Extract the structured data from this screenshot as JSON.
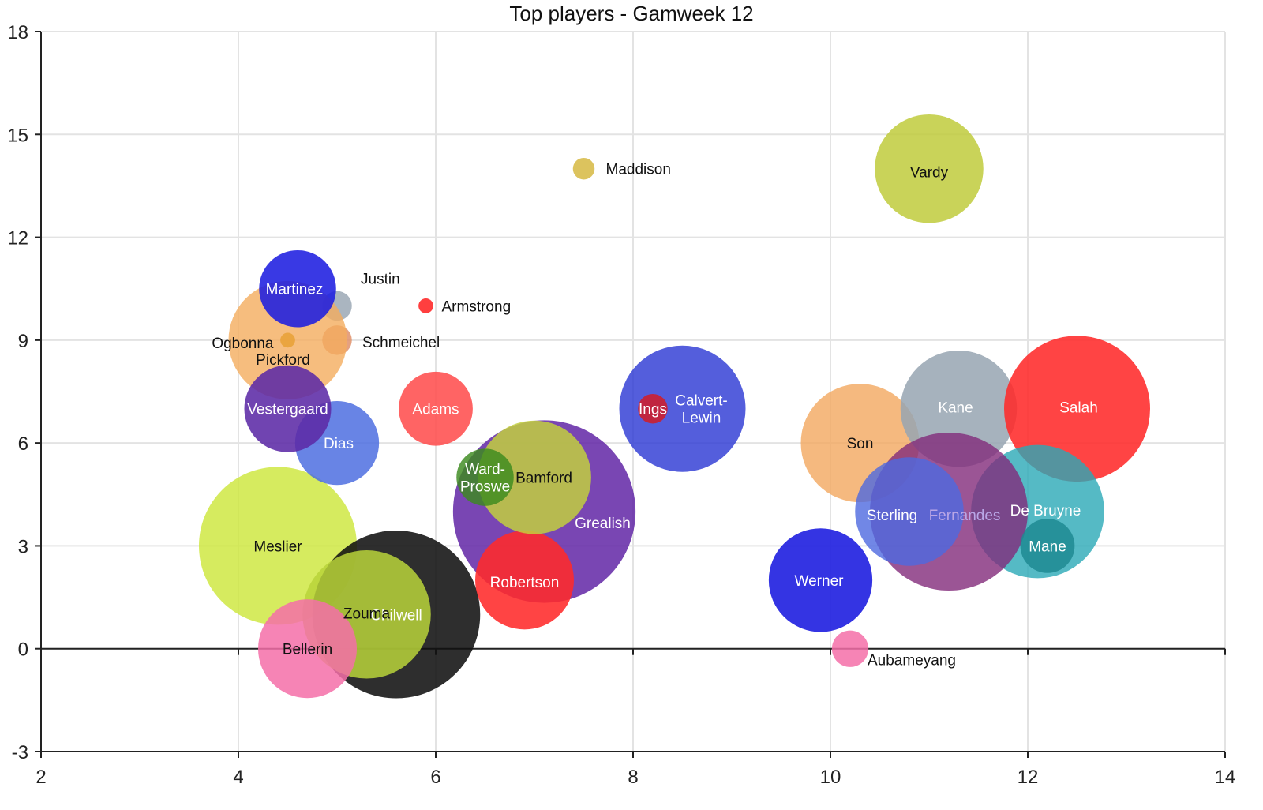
{
  "chart_data": {
    "type": "scatter",
    "title": "Top players - Gamweek 12",
    "xlim": [
      2,
      14
    ],
    "ylim": [
      -3,
      18
    ],
    "xticks": [
      "2",
      "4",
      "6",
      "8",
      "10",
      "12",
      "14"
    ],
    "yticks": [
      "-3",
      "0",
      "3",
      "6",
      "9",
      "12",
      "15",
      "18"
    ],
    "grid": true,
    "points": [
      {
        "label": "Meslier",
        "x": 4.4,
        "y": 3,
        "r": 1.6,
        "color": "#cde63c",
        "opacity": 0.82,
        "text_color": "#111111"
      },
      {
        "label": "Chilwell",
        "x": 5.6,
        "y": 1,
        "r": 1.7,
        "color": "#111111",
        "opacity": 0.88,
        "text_color": "#ffffff"
      },
      {
        "label": "Zouma",
        "x": 5.3,
        "y": 1,
        "r": 1.3,
        "color": "#b9d43a",
        "opacity": 0.85,
        "text_color": "#111111"
      },
      {
        "label": "Bellerin",
        "x": 4.7,
        "y": 0,
        "r": 1.0,
        "color": "#f46ea8",
        "opacity": 0.85,
        "text_color": "#111111"
      },
      {
        "label": "Grealish",
        "x": 7.1,
        "y": 4,
        "r": 1.85,
        "color": "#6226a6",
        "opacity": 0.85,
        "text_color": "#ffffff"
      },
      {
        "label": "Robertson",
        "x": 6.9,
        "y": 2,
        "r": 1.0,
        "color": "#ff2a2a",
        "opacity": 0.88,
        "text_color": "#ffffff"
      },
      {
        "label": "Bamford",
        "x": 7.0,
        "y": 5,
        "r": 1.15,
        "color": "#c2cf3e",
        "opacity": 0.85,
        "text_color": "#111111"
      },
      {
        "label": "Ward-Proswe",
        "x": 6.5,
        "y": 5,
        "r": 0.58,
        "color": "#3c8a1f",
        "opacity": 0.82,
        "text_color": "#ffffff"
      },
      {
        "label": "Adams",
        "x": 6.0,
        "y": 7,
        "r": 0.75,
        "color": "#ff4f4f",
        "opacity": 0.88,
        "text_color": "#ffffff"
      },
      {
        "label": "Dias",
        "x": 5.0,
        "y": 6,
        "r": 0.85,
        "color": "#4d6fe0",
        "opacity": 0.85,
        "text_color": "#ffffff"
      },
      {
        "label": "Justin",
        "x": 5.0,
        "y": 10,
        "r": 0.3,
        "color": "#9ba8b5",
        "opacity": 0.85,
        "text_color": "#111111"
      },
      {
        "label": "Schmeichel",
        "x": 5.0,
        "y": 9,
        "r": 0.3,
        "color": "#e0906a",
        "opacity": 0.85,
        "text_color": "#111111"
      },
      {
        "label": "Pickford",
        "x": 4.5,
        "y": 9,
        "r": 1.2,
        "color": "#f4ac5e",
        "opacity": 0.8,
        "text_color": "#111111"
      },
      {
        "label": "Ogbonna",
        "x": 4.5,
        "y": 9,
        "r": 0.15,
        "color": "#e9a23a",
        "opacity": 0.9,
        "text_color": "#111111"
      },
      {
        "label": "Martinez",
        "x": 4.6,
        "y": 10.5,
        "r": 0.78,
        "color": "#1e1ee0",
        "opacity": 0.88,
        "text_color": "#ffffff"
      },
      {
        "label": "Vestergaard",
        "x": 4.5,
        "y": 7,
        "r": 0.88,
        "color": "#5c2aa6",
        "opacity": 0.88,
        "text_color": "#ffffff"
      },
      {
        "label": "Armstrong",
        "x": 5.9,
        "y": 10,
        "r": 0.15,
        "color": "#ff2a2a",
        "opacity": 0.9,
        "text_color": "#111111"
      },
      {
        "label": "Maddison",
        "x": 7.5,
        "y": 14,
        "r": 0.22,
        "color": "#d8bc4c",
        "opacity": 0.9,
        "text_color": "#111111"
      },
      {
        "label": "Vardy",
        "x": 11.0,
        "y": 14,
        "r": 1.1,
        "color": "#bfcb3c",
        "opacity": 0.85,
        "text_color": "#111111"
      },
      {
        "label": "Calvert-Lewin",
        "x": 8.5,
        "y": 7,
        "r": 1.28,
        "color": "#2e3ad4",
        "opacity": 0.82,
        "text_color": "#ffffff"
      },
      {
        "label": "Ings",
        "x": 8.2,
        "y": 7,
        "r": 0.3,
        "color": "#cc1f2f",
        "opacity": 0.9,
        "text_color": "#ffffff"
      },
      {
        "label": "Son",
        "x": 10.3,
        "y": 6,
        "r": 1.2,
        "color": "#f2a85f",
        "opacity": 0.8,
        "text_color": "#111111"
      },
      {
        "label": "Kane",
        "x": 11.3,
        "y": 7,
        "r": 1.18,
        "color": "#97a4b2",
        "opacity": 0.85,
        "text_color": "#ffffff"
      },
      {
        "label": "Salah",
        "x": 12.5,
        "y": 7,
        "r": 1.48,
        "color": "#ff2a2a",
        "opacity": 0.88,
        "text_color": "#ffffff"
      },
      {
        "label": "De Bruyne",
        "x": 12.1,
        "y": 4,
        "r": 1.35,
        "color": "#2aa9b6",
        "opacity": 0.8,
        "text_color": "#ffffff"
      },
      {
        "label": "Fernandes",
        "x": 11.2,
        "y": 4,
        "r": 1.6,
        "color": "#822b7a",
        "opacity": 0.8,
        "text_color": "#b9a6e6"
      },
      {
        "label": "Sterling",
        "x": 10.8,
        "y": 4,
        "r": 1.1,
        "color": "#4d69e0",
        "opacity": 0.8,
        "text_color": "#ffffff"
      },
      {
        "label": "Mane",
        "x": 12.2,
        "y": 3,
        "r": 0.55,
        "color": "#1e8a92",
        "opacity": 0.85,
        "text_color": "#ffffff"
      },
      {
        "label": "Werner",
        "x": 9.9,
        "y": 2,
        "r": 1.05,
        "color": "#1e1ee0",
        "opacity": 0.9,
        "text_color": "#ffffff"
      },
      {
        "label": "Aubameyang",
        "x": 10.2,
        "y": 0,
        "r": 0.37,
        "color": "#f46ea8",
        "opacity": 0.85,
        "text_color": "#111111"
      }
    ]
  }
}
